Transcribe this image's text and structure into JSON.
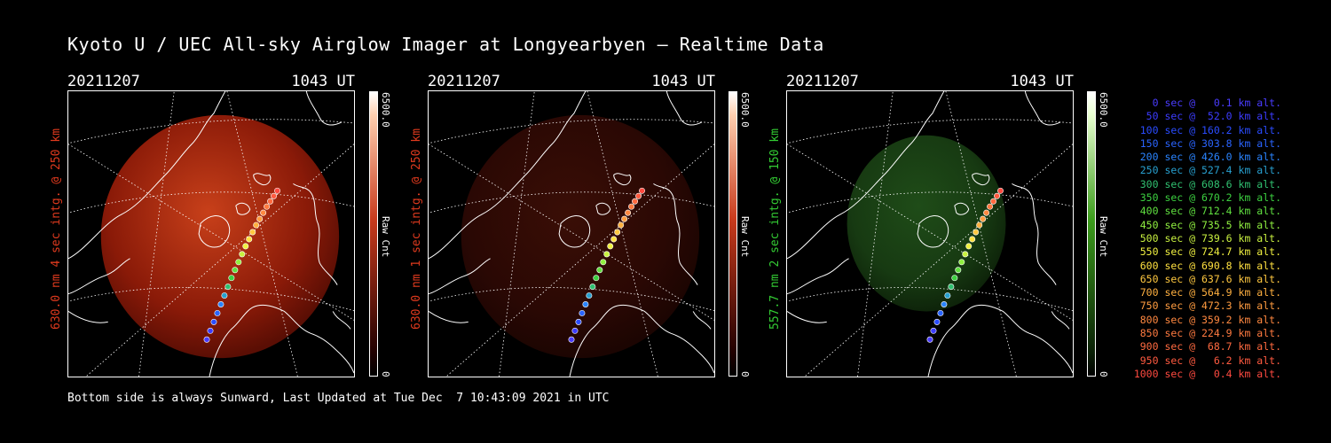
{
  "title": "Kyoto U / UEC All-sky Airglow Imager at Longyearbyen — Realtime Data",
  "footer": "Bottom side is always Sunward, Last Updated at Tue Dec  7 10:43:09 2021 in UTC",
  "panels": [
    {
      "date": "20211207",
      "time": "1043 UT",
      "side_label": "630.0 nm 4 sec intg. @ 250 km",
      "side_color": "#e03a1e",
      "cbar_max": "6500.0",
      "cbar_min": "0",
      "cbar_unit": "Raw Cnt",
      "accent": "#c02a10",
      "brightness": 0.75
    },
    {
      "date": "20211207",
      "time": "1043 UT",
      "side_label": "630.0 nm 1 sec intg. @ 250 km",
      "side_color": "#e03a1e",
      "cbar_max": "6500.0",
      "cbar_min": "0",
      "cbar_unit": "Raw Cnt",
      "accent": "#3a0c06",
      "brightness": 0.25
    },
    {
      "date": "20211207",
      "time": "1043 UT",
      "side_label": "557.7 nm 2 sec intg. @ 150 km",
      "side_color": "#33cc33",
      "cbar_max": "6500.0",
      "cbar_min": "0",
      "cbar_unit": "Raw Cnt",
      "accent": "#1e4a16",
      "brightness": 0.3
    }
  ],
  "legend": [
    {
      "text": "0 sec @   0.1 km alt.",
      "color": "#4a3cff"
    },
    {
      "text": "50 sec @  52.0 km alt.",
      "color": "#3c3cff"
    },
    {
      "text": "100 sec @ 160.2 km alt.",
      "color": "#2a4cff"
    },
    {
      "text": "150 sec @ 303.8 km alt.",
      "color": "#2a64ff"
    },
    {
      "text": "200 sec @ 426.0 km alt.",
      "color": "#2a84ff"
    },
    {
      "text": "250 sec @ 527.4 km alt.",
      "color": "#28a0d0"
    },
    {
      "text": "300 sec @ 608.6 km alt.",
      "color": "#30c070"
    },
    {
      "text": "350 sec @ 670.2 km alt.",
      "color": "#3cd040"
    },
    {
      "text": "400 sec @ 712.4 km alt.",
      "color": "#60e040"
    },
    {
      "text": "450 sec @ 735.5 km alt.",
      "color": "#90f040"
    },
    {
      "text": "500 sec @ 739.6 km alt.",
      "color": "#c8f040"
    },
    {
      "text": "550 sec @ 724.7 km alt.",
      "color": "#f0f040"
    },
    {
      "text": "600 sec @ 690.8 km alt.",
      "color": "#ffe040"
    },
    {
      "text": "650 sec @ 637.6 km alt.",
      "color": "#ffc840"
    },
    {
      "text": "700 sec @ 564.9 km alt.",
      "color": "#ffb040"
    },
    {
      "text": "750 sec @ 472.3 km alt.",
      "color": "#ff9c40"
    },
    {
      "text": "800 sec @ 359.2 km alt.",
      "color": "#ff8840"
    },
    {
      "text": "850 sec @ 224.9 km alt.",
      "color": "#ff7a40"
    },
    {
      "text": "900 sec @  68.7 km alt.",
      "color": "#ff6a40"
    },
    {
      "text": "950 sec @   6.2 km alt.",
      "color": "#ff5a40"
    },
    {
      "text": "1000 sec @   0.4 km alt.",
      "color": "#ff4a40"
    }
  ]
}
